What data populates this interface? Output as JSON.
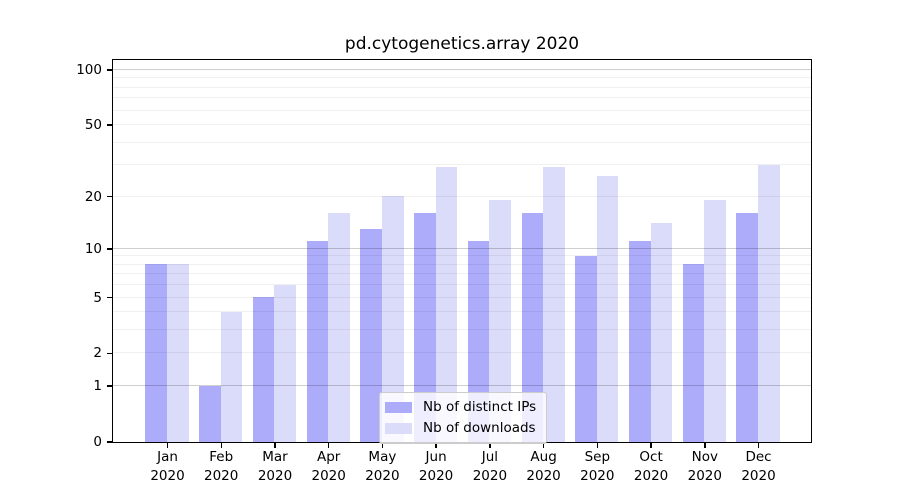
{
  "chart_data": {
    "type": "bar",
    "title": "pd.cytogenetics.array 2020",
    "categories": [
      "Jan",
      "Feb",
      "Mar",
      "Apr",
      "May",
      "Jun",
      "Jul",
      "Aug",
      "Sep",
      "Oct",
      "Nov",
      "Dec"
    ],
    "year_label": "2020",
    "series": [
      {
        "name": "Nb of distinct IPs",
        "color": "#acacfa",
        "values": [
          8,
          1,
          5,
          11,
          13,
          16,
          11,
          16,
          9,
          11,
          8,
          16
        ]
      },
      {
        "name": "Nb of downloads",
        "color": "#dbdbfa",
        "values": [
          8,
          4,
          6,
          16,
          20,
          29,
          19,
          29,
          26,
          14,
          19,
          30
        ]
      }
    ],
    "y_axis": {
      "scale": "log10(1+x)",
      "ylim": [
        0,
        100
      ],
      "tick_labels": [
        "100",
        "50",
        "20",
        "10",
        "5",
        "2",
        "1",
        "0"
      ],
      "tick_values": [
        100,
        50,
        20,
        10,
        5,
        2,
        1,
        0
      ],
      "major_gridlines": [
        1,
        10,
        100
      ],
      "minor_gridlines": [
        2,
        3,
        4,
        5,
        6,
        7,
        8,
        9,
        20,
        30,
        40,
        50,
        60,
        70,
        80,
        90
      ]
    },
    "legend_position": "bottom-center",
    "grid": true
  }
}
